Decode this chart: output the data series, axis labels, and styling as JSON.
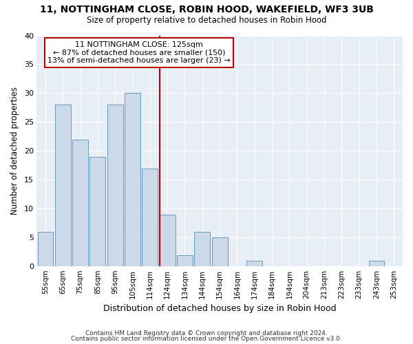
{
  "title": "11, NOTTINGHAM CLOSE, ROBIN HOOD, WAKEFIELD, WF3 3UB",
  "subtitle": "Size of property relative to detached houses in Robin Hood",
  "xlabel": "Distribution of detached houses by size in Robin Hood",
  "ylabel": "Number of detached properties",
  "bar_color": "#ccd9e8",
  "bar_edge_color": "#6699bb",
  "categories": [
    "55sqm",
    "65sqm",
    "75sqm",
    "85sqm",
    "95sqm",
    "105sqm",
    "114sqm",
    "124sqm",
    "134sqm",
    "144sqm",
    "154sqm",
    "164sqm",
    "174sqm",
    "184sqm",
    "194sqm",
    "204sqm",
    "213sqm",
    "223sqm",
    "233sqm",
    "243sqm",
    "253sqm"
  ],
  "values": [
    6,
    28,
    22,
    19,
    28,
    30,
    17,
    9,
    2,
    6,
    5,
    0,
    1,
    0,
    0,
    0,
    0,
    0,
    0,
    1,
    0
  ],
  "vline_color": "#bb0000",
  "annotation_text": "11 NOTTINGHAM CLOSE: 125sqm\n← 87% of detached houses are smaller (150)\n13% of semi-detached houses are larger (23) →",
  "annotation_box_color": "#ffffff",
  "annotation_box_edge": "#bb0000",
  "ylim": [
    0,
    40
  ],
  "yticks": [
    0,
    5,
    10,
    15,
    20,
    25,
    30,
    35,
    40
  ],
  "bg_color": "#ffffff",
  "plot_bg_color": "#e8eef5",
  "grid_color": "#ffffff",
  "footer1": "Contains HM Land Registry data © Crown copyright and database right 2024.",
  "footer2": "Contains public sector information licensed under the Open Government Licence v3.0."
}
